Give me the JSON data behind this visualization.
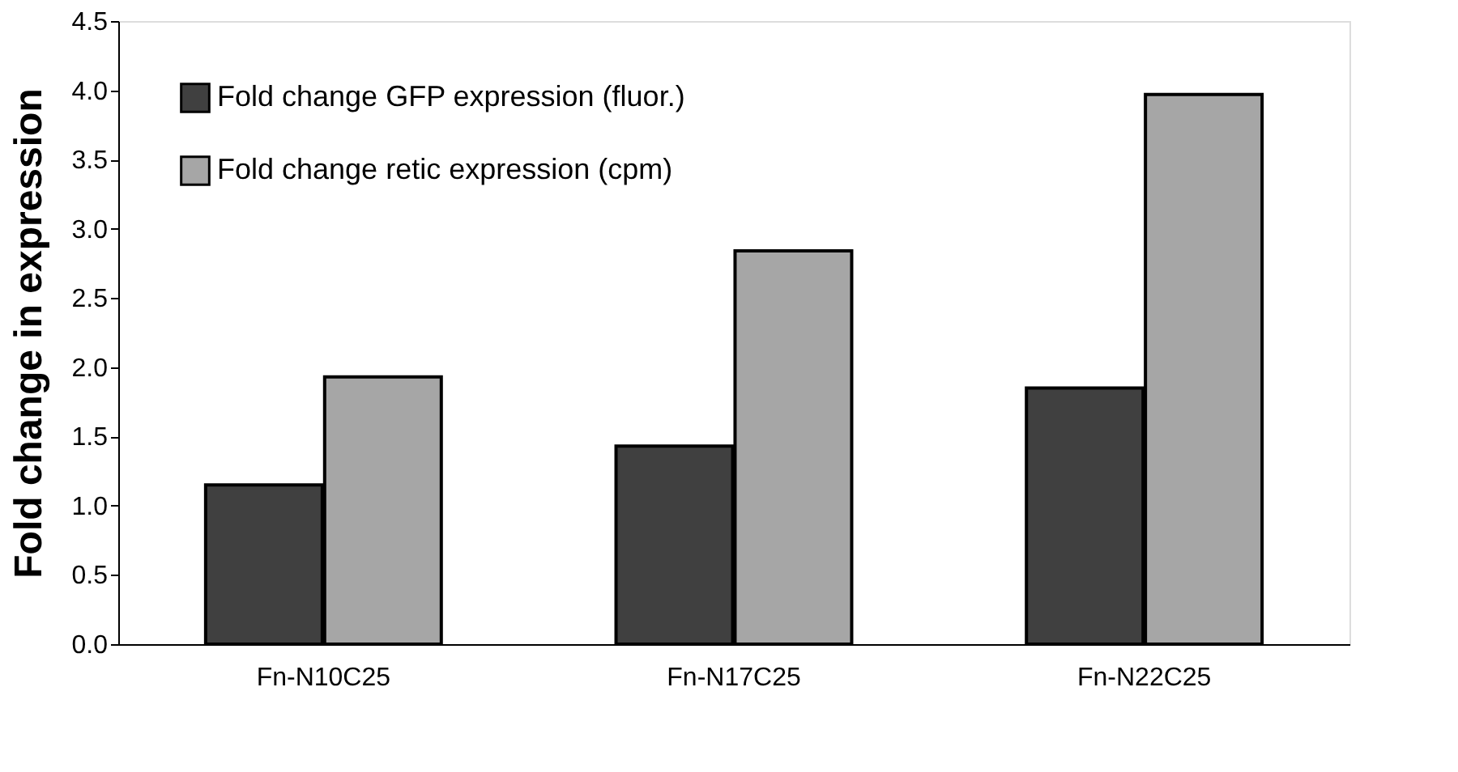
{
  "chart_data": {
    "type": "bar",
    "ylabel": "Fold change in expression",
    "categories": [
      "Fn-N10C25",
      "Fn-N17C25",
      "Fn-N22C25"
    ],
    "series": [
      {
        "name": "Fold change GFP expression (fluor.)",
        "color": "#404040",
        "values": [
          1.15,
          1.43,
          1.85
        ]
      },
      {
        "name": "Fold change retic expression (cpm)",
        "color": "#a6a6a6",
        "values": [
          1.93,
          2.84,
          3.97
        ]
      }
    ],
    "ylim": [
      0,
      4.5
    ],
    "yticks": [
      {
        "value": 0,
        "label": "0.0"
      },
      {
        "value": 0.5,
        "label": "0.5"
      },
      {
        "value": 1,
        "label": "1.0"
      },
      {
        "value": 1.5,
        "label": "1.5"
      },
      {
        "value": 2,
        "label": "2.0"
      },
      {
        "value": 2.5,
        "label": "2.5"
      },
      {
        "value": 3,
        "label": "3.0"
      },
      {
        "value": 3.5,
        "label": "3.5"
      },
      {
        "value": 4,
        "label": "4.0"
      },
      {
        "value": 4.5,
        "label": "4.5"
      }
    ],
    "grid": false,
    "legend": "top left"
  }
}
